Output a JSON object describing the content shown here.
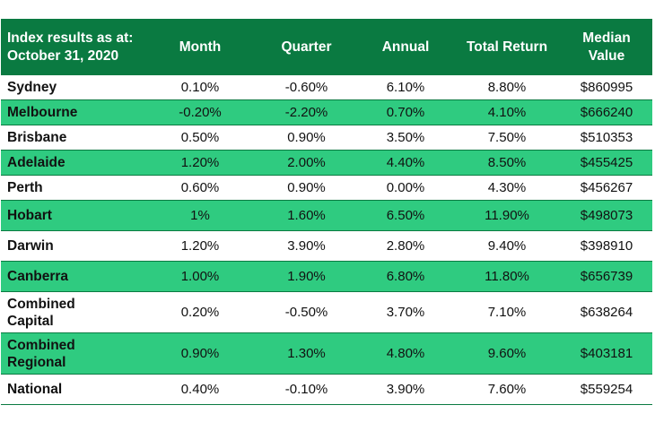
{
  "table": {
    "headers": {
      "label": [
        "Index results as at:",
        "October 31, 2020"
      ],
      "month": "Month",
      "quarter": "Quarter",
      "annual": "Annual",
      "total_return": "Total Return",
      "median_value": [
        "Median",
        "Value"
      ]
    },
    "rows": [
      {
        "name": [
          "Sydney"
        ],
        "month": "0.10%",
        "quarter": "-0.60%",
        "annual": "6.10%",
        "total_return": "8.80%",
        "median_value": "$860995"
      },
      {
        "name": [
          "Melbourne"
        ],
        "month": "-0.20%",
        "quarter": "-2.20%",
        "annual": "0.70%",
        "total_return": "4.10%",
        "median_value": "$666240"
      },
      {
        "name": [
          "Brisbane"
        ],
        "month": "0.50%",
        "quarter": "0.90%",
        "annual": "3.50%",
        "total_return": "7.50%",
        "median_value": "$510353"
      },
      {
        "name": [
          "Adelaide"
        ],
        "month": "1.20%",
        "quarter": "2.00%",
        "annual": "4.40%",
        "total_return": "8.50%",
        "median_value": "$455425"
      },
      {
        "name": [
          "Perth"
        ],
        "month": "0.60%",
        "quarter": "0.90%",
        "annual": "0.00%",
        "total_return": "4.30%",
        "median_value": "$456267"
      },
      {
        "name": [
          "Hobart"
        ],
        "month": "1%",
        "quarter": "1.60%",
        "annual": "6.50%",
        "total_return": "11.90%",
        "median_value": "$498073"
      },
      {
        "name": [
          "Darwin"
        ],
        "month": "1.20%",
        "quarter": "3.90%",
        "annual": "2.80%",
        "total_return": "9.40%",
        "median_value": "$398910"
      },
      {
        "name": [
          "Canberra"
        ],
        "month": "1.00%",
        "quarter": "1.90%",
        "annual": "6.80%",
        "total_return": "11.80%",
        "median_value": "$656739"
      },
      {
        "name": [
          "Combined",
          "Capital"
        ],
        "month": "0.20%",
        "quarter": "-0.50%",
        "annual": "3.70%",
        "total_return": "7.10%",
        "median_value": "$638264"
      },
      {
        "name": [
          "Combined",
          "Regional"
        ],
        "month": "0.90%",
        "quarter": "1.30%",
        "annual": "4.80%",
        "total_return": "9.60%",
        "median_value": "$403181"
      },
      {
        "name": [
          "National"
        ],
        "month": "0.40%",
        "quarter": "-0.10%",
        "annual": "3.90%",
        "total_return": "7.60%",
        "median_value": "$559254"
      }
    ]
  },
  "colors": {
    "header_bg": "#0a7a41",
    "alt_row_bg": "#2fcb80",
    "header_text": "#ffffff"
  }
}
